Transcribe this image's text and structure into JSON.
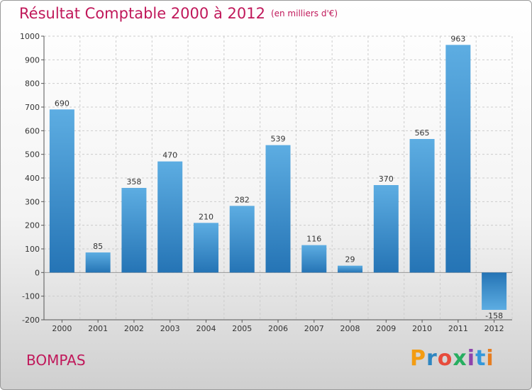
{
  "title": "Résultat Comptable 2000 à 2012",
  "subtitle": "(en milliers d'€)",
  "commune": "BOMPAS",
  "logo": {
    "text": "Proxiti",
    "letter_colors": [
      "#f39c12",
      "#2e86c1",
      "#e74c3c",
      "#27ae60",
      "#8e44ad",
      "#3498db",
      "#e67e22"
    ]
  },
  "colors": {
    "title": "#c0185a",
    "bar_light": "#5dade2",
    "bar_dark": "#2574b5",
    "grid": "#cccccc"
  },
  "chart_data": {
    "type": "bar",
    "categories": [
      "2000",
      "2001",
      "2002",
      "2003",
      "2004",
      "2005",
      "2006",
      "2007",
      "2008",
      "2009",
      "2010",
      "2011",
      "2012"
    ],
    "values": [
      690,
      85,
      358,
      470,
      210,
      282,
      539,
      116,
      29,
      370,
      565,
      963,
      -158
    ],
    "data_labels": [
      "690",
      "85",
      "358",
      "470",
      "210",
      "282",
      "539",
      "116",
      "29",
      "370",
      "565",
      "963",
      "-158"
    ],
    "ylim": [
      -200,
      1000
    ],
    "yticks": [
      -200,
      -100,
      0,
      100,
      200,
      300,
      400,
      500,
      600,
      700,
      800,
      900,
      1000
    ],
    "ytick_labels": [
      "-200",
      "-100",
      "0",
      "100",
      "200",
      "300",
      "400",
      "500",
      "600",
      "700",
      "800",
      "900",
      "1000"
    ],
    "grid": true,
    "grid_style": "dashed"
  }
}
